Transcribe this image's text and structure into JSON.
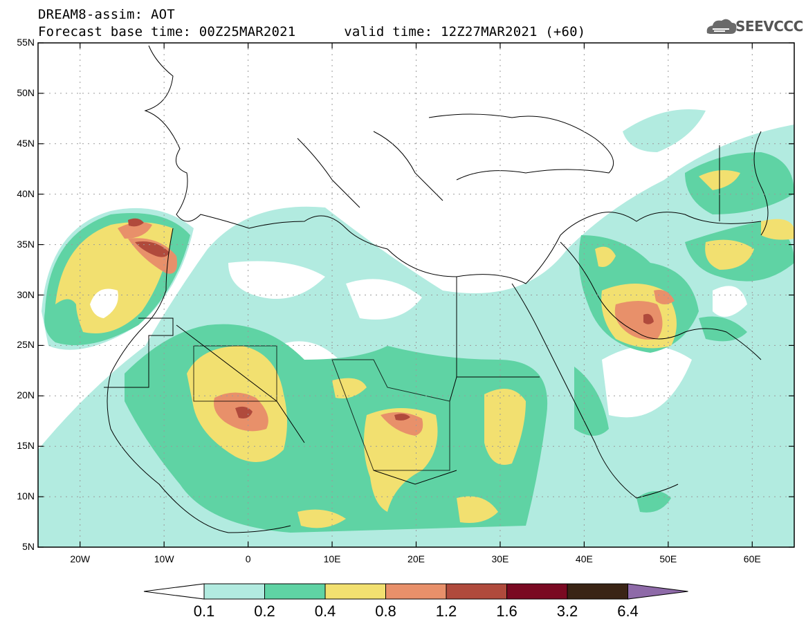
{
  "header": {
    "title_line1": "DREAM8-assim: AOT",
    "title_line2": "Forecast base time: 00Z25MAR2021      valid time: 12Z27MAR2021 (+60)"
  },
  "logo": {
    "text": "SEEVCCC",
    "icon": "cloud-logo-icon"
  },
  "map": {
    "lat_labels": [
      "55N",
      "50N",
      "45N",
      "40N",
      "35N",
      "30N",
      "25N",
      "20N",
      "15N",
      "10N",
      "5N"
    ],
    "lon_labels": [
      "20W",
      "10W",
      "0",
      "10E",
      "20E",
      "30E",
      "40E",
      "50E",
      "60E"
    ],
    "lat_range": [
      5,
      55
    ],
    "lon_range": [
      -25,
      65
    ],
    "grid": true,
    "variable": "AOT"
  },
  "colorbar": {
    "labels": [
      "0.1",
      "0.2",
      "0.4",
      "0.8",
      "1.2",
      "1.6",
      "3.2",
      "6.4"
    ],
    "colors": [
      "#ffffff",
      "#b2ebe0",
      "#5fd3a4",
      "#f2e070",
      "#e8906a",
      "#b04a3c",
      "#7a0a22",
      "#3a2415",
      "#8e6aa8"
    ]
  }
}
